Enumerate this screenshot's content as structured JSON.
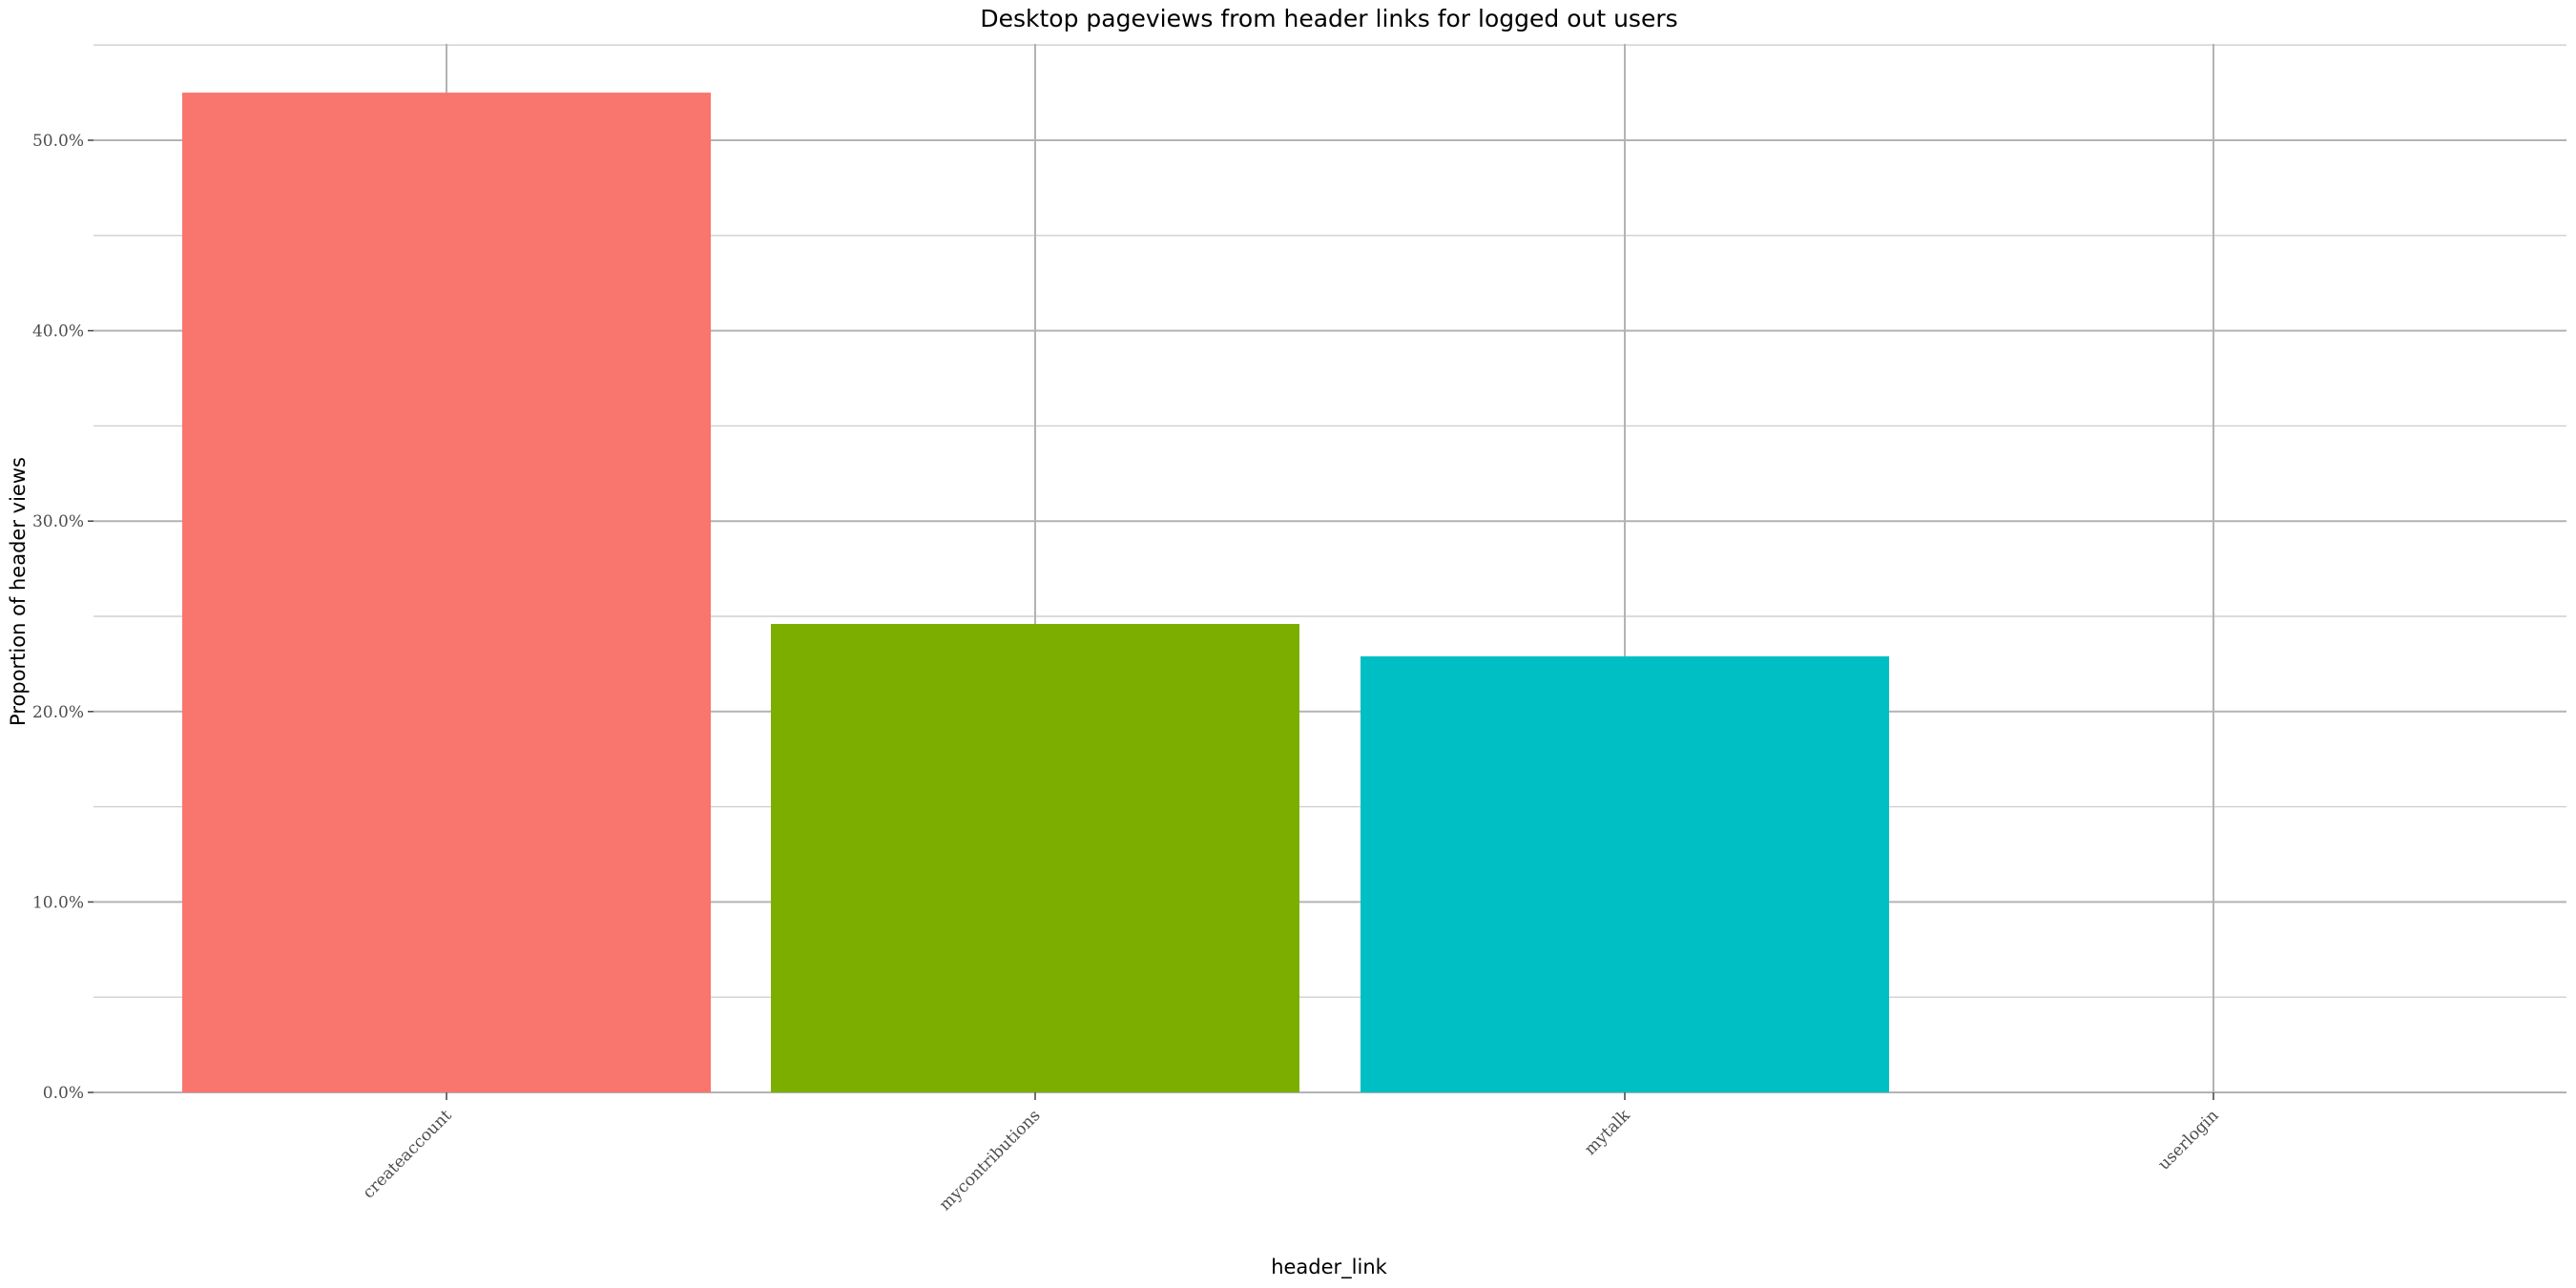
{
  "chart_data": {
    "type": "bar",
    "title": "Desktop pageviews from header links for logged out users",
    "xlabel": "header_link",
    "ylabel": "Proportion of header views",
    "categories": [
      "createaccount",
      "mycontributions",
      "mytalk",
      "userlogin"
    ],
    "values": [
      52.5,
      24.6,
      22.9,
      0
    ],
    "value_unit": "%",
    "ylim": [
      0,
      55
    ],
    "yticks": [
      0,
      10,
      20,
      30,
      40,
      50
    ],
    "ytick_labels": [
      "0.0%",
      "10.0%",
      "20.0%",
      "30.0%",
      "40.0%",
      "50.0%"
    ],
    "grid": true,
    "legend": "none",
    "colors": [
      "#F8766D",
      "#7CAE00",
      "#00BFC4",
      "#C77CFF"
    ]
  }
}
